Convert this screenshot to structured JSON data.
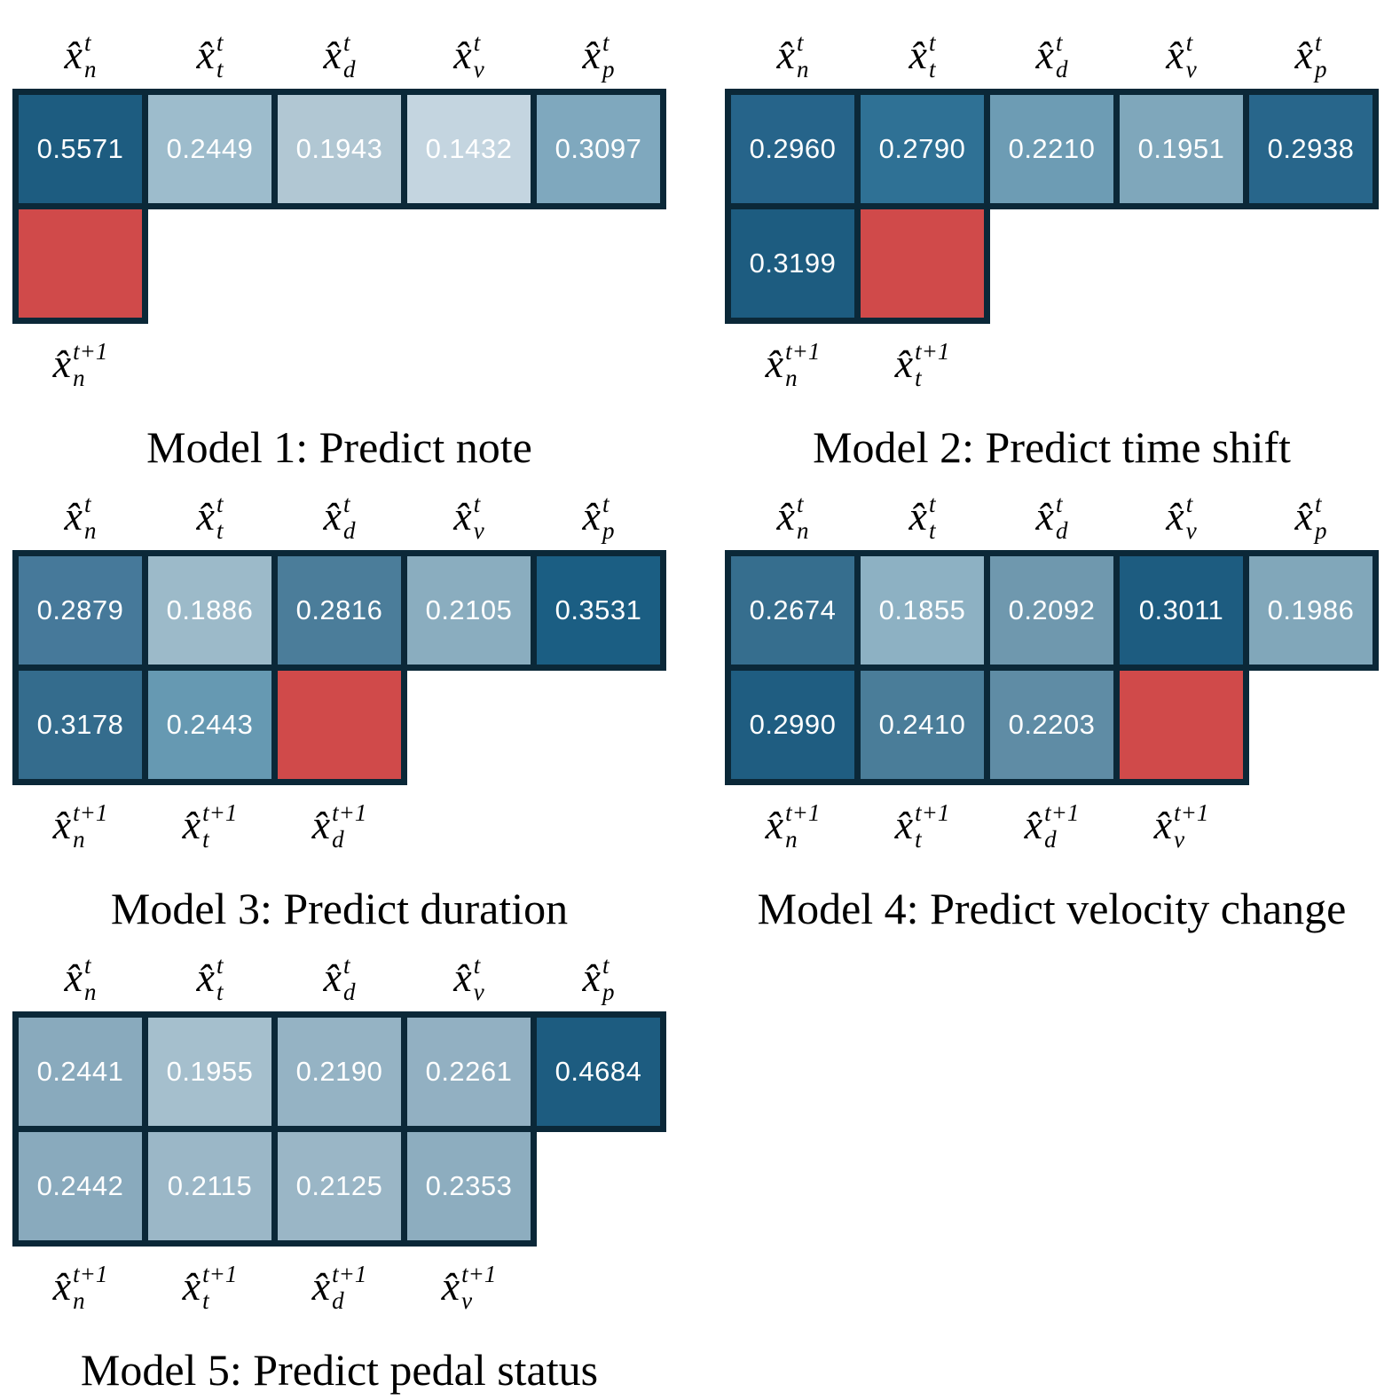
{
  "palette": {
    "background": "#ffffff",
    "grid_line": "#0b2838",
    "target_red": "#d04a4a",
    "value_text": "#ffffff",
    "label_text": "#000000",
    "dark_blue_max": "#1d5c80",
    "light_blue_min": "#c4d5e0"
  },
  "notation": {
    "base": "x̂",
    "current_sup": "t",
    "next_sup": "t+1",
    "vars": [
      "n",
      "t",
      "d",
      "v",
      "p"
    ]
  },
  "chart_data": [
    {
      "type": "heatmap",
      "caption": "Model 1: Predict note",
      "top_row": [
        {
          "var": "n",
          "value": "0.5571",
          "color": "#1d5c80"
        },
        {
          "var": "t",
          "value": "0.2449",
          "color": "#9dbccc"
        },
        {
          "var": "d",
          "value": "0.1943",
          "color": "#b1c7d3"
        },
        {
          "var": "v",
          "value": "0.1432",
          "color": "#c4d5e0"
        },
        {
          "var": "p",
          "value": "0.3097",
          "color": "#7fa8be"
        }
      ],
      "bottom_row": [
        {
          "var": "n",
          "value": "",
          "color": "#d04a4a",
          "target": true
        }
      ]
    },
    {
      "type": "heatmap",
      "caption": "Model 2: Predict time shift",
      "top_row": [
        {
          "var": "n",
          "value": "0.2960",
          "color": "#26648a"
        },
        {
          "var": "t",
          "value": "0.2790",
          "color": "#2f7195"
        },
        {
          "var": "d",
          "value": "0.2210",
          "color": "#6d9cb4"
        },
        {
          "var": "v",
          "value": "0.1951",
          "color": "#7fa7bb"
        },
        {
          "var": "p",
          "value": "0.2938",
          "color": "#28668b"
        }
      ],
      "bottom_row": [
        {
          "var": "n",
          "value": "0.3199",
          "color": "#1d5c80"
        },
        {
          "var": "t",
          "value": "",
          "color": "#d04a4a",
          "target": true
        }
      ]
    },
    {
      "type": "heatmap",
      "caption": "Model 3: Predict duration",
      "top_row": [
        {
          "var": "n",
          "value": "0.2879",
          "color": "#46799a"
        },
        {
          "var": "t",
          "value": "0.1886",
          "color": "#9cbac9"
        },
        {
          "var": "d",
          "value": "0.2816",
          "color": "#4b7d9a"
        },
        {
          "var": "v",
          "value": "0.2105",
          "color": "#8aadbf"
        },
        {
          "var": "p",
          "value": "0.3531",
          "color": "#1b5e83"
        }
      ],
      "bottom_row": [
        {
          "var": "n",
          "value": "0.3178",
          "color": "#346c8d"
        },
        {
          "var": "t",
          "value": "0.2443",
          "color": "#6699b2"
        },
        {
          "var": "d",
          "value": "",
          "color": "#d04a4a",
          "target": true
        }
      ]
    },
    {
      "type": "heatmap",
      "caption": "Model 4: Predict velocity change",
      "top_row": [
        {
          "var": "n",
          "value": "0.2674",
          "color": "#366e8e"
        },
        {
          "var": "t",
          "value": "0.1855",
          "color": "#8db1c3"
        },
        {
          "var": "d",
          "value": "0.2092",
          "color": "#6f98ae"
        },
        {
          "var": "v",
          "value": "0.3011",
          "color": "#1d5c80"
        },
        {
          "var": "p",
          "value": "0.1986",
          "color": "#81a7ba"
        }
      ],
      "bottom_row": [
        {
          "var": "n",
          "value": "0.2990",
          "color": "#1f5d81"
        },
        {
          "var": "t",
          "value": "0.2410",
          "color": "#4a7d99"
        },
        {
          "var": "d",
          "value": "0.2203",
          "color": "#5f8ca5"
        },
        {
          "var": "v",
          "value": "",
          "color": "#d04a4a",
          "target": true
        }
      ]
    },
    {
      "type": "heatmap",
      "caption": "Model 5: Predict pedal status",
      "top_row": [
        {
          "var": "n",
          "value": "0.2441",
          "color": "#89aabd"
        },
        {
          "var": "t",
          "value": "0.1955",
          "color": "#a5bfcd"
        },
        {
          "var": "d",
          "value": "0.2190",
          "color": "#95b3c4"
        },
        {
          "var": "v",
          "value": "0.2261",
          "color": "#92b0c2"
        },
        {
          "var": "p",
          "value": "0.4684",
          "color": "#1d5c80"
        }
      ],
      "bottom_row": [
        {
          "var": "n",
          "value": "0.2442",
          "color": "#89aabd"
        },
        {
          "var": "t",
          "value": "0.2115",
          "color": "#9bb7c7"
        },
        {
          "var": "d",
          "value": "0.2125",
          "color": "#9ab6c6"
        },
        {
          "var": "v",
          "value": "0.2353",
          "color": "#8dadbf"
        }
      ]
    }
  ]
}
